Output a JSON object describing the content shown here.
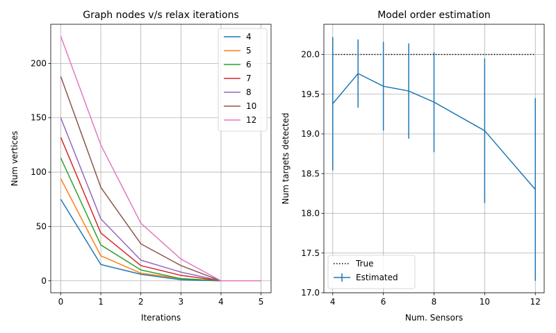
{
  "chart_data": [
    {
      "type": "line",
      "title": "Graph nodes v/s relax iterations",
      "xlabel": "Iterations",
      "ylabel": "Num vertices",
      "xlim": [
        -0.25,
        5.25
      ],
      "ylim": [
        -11,
        236
      ],
      "xticks": [
        0,
        1,
        2,
        3,
        4,
        5
      ],
      "yticks": [
        0,
        50,
        100,
        150,
        200
      ],
      "grid": true,
      "legend_position": "top-right",
      "x": [
        0,
        1,
        2,
        3,
        4,
        5
      ],
      "series": [
        {
          "name": "4",
          "color": "#1f77b4",
          "values": [
            75,
            15,
            6,
            1,
            0,
            0
          ]
        },
        {
          "name": "5",
          "color": "#ff7f0e",
          "values": [
            94,
            23,
            7,
            2,
            0,
            0
          ]
        },
        {
          "name": "6",
          "color": "#2ca02c",
          "values": [
            113,
            33,
            10,
            2,
            0,
            0
          ]
        },
        {
          "name": "7",
          "color": "#d62728",
          "values": [
            132,
            44,
            14,
            5,
            0,
            0
          ]
        },
        {
          "name": "8",
          "color": "#9467bd",
          "values": [
            150,
            57,
            19,
            8,
            0,
            0
          ]
        },
        {
          "name": "10",
          "color": "#8c564b",
          "values": [
            188,
            86,
            34,
            14,
            0,
            0
          ]
        },
        {
          "name": "12",
          "color": "#e377c2",
          "values": [
            225,
            125,
            53,
            20,
            0,
            0
          ]
        }
      ]
    },
    {
      "type": "line",
      "title": "Model order estimation",
      "xlabel": "Num. Sensors",
      "ylabel": "Num targets detected",
      "xlim": [
        3.65,
        12.35
      ],
      "ylim": [
        17.0,
        20.38
      ],
      "xticks": [
        4,
        6,
        8,
        10,
        12
      ],
      "yticks": [
        17.0,
        17.5,
        18.0,
        18.5,
        19.0,
        19.5,
        20.0
      ],
      "ytick_labels": [
        "17.0",
        "17.5",
        "18.0",
        "18.5",
        "19.0",
        "19.5",
        "20.0"
      ],
      "grid": true,
      "legend_position": "bottom-left",
      "x": [
        4,
        5,
        6,
        7,
        8,
        10,
        12
      ],
      "series": [
        {
          "name": "True",
          "color": "#000000",
          "style": "dotted",
          "values": [
            20,
            20,
            20,
            20,
            20,
            20,
            20
          ]
        },
        {
          "name": "Estimated",
          "color": "#1f77b4",
          "style": "solid",
          "values": [
            19.38,
            19.76,
            19.6,
            19.54,
            19.4,
            19.04,
            18.3
          ],
          "error": [
            0.84,
            0.43,
            0.56,
            0.6,
            0.63,
            0.91,
            1.15
          ]
        }
      ]
    }
  ]
}
